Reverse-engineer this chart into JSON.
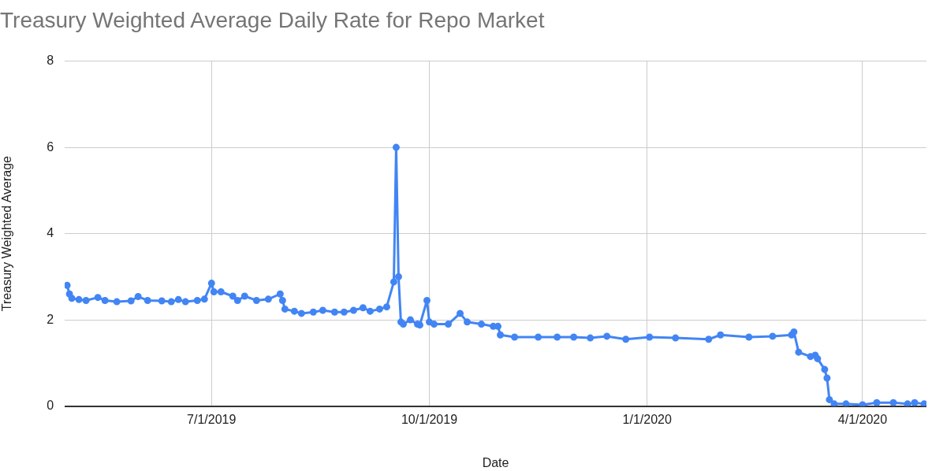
{
  "chart_data": {
    "type": "line",
    "title": "Treasury Weighted Average Daily Rate for Repo Market",
    "xlabel": "Date",
    "ylabel": "Treasury Weighted Average",
    "x": [
      "2019-05-01",
      "2019-05-02",
      "2019-05-03",
      "2019-05-06",
      "2019-05-09",
      "2019-05-14",
      "2019-05-17",
      "2019-05-22",
      "2019-05-28",
      "2019-05-31",
      "2019-06-04",
      "2019-06-10",
      "2019-06-14",
      "2019-06-17",
      "2019-06-20",
      "2019-06-25",
      "2019-06-28",
      "2019-07-01",
      "2019-07-02",
      "2019-07-05",
      "2019-07-10",
      "2019-07-12",
      "2019-07-15",
      "2019-07-20",
      "2019-07-25",
      "2019-07-30",
      "2019-07-31",
      "2019-08-01",
      "2019-08-05",
      "2019-08-08",
      "2019-08-13",
      "2019-08-17",
      "2019-08-22",
      "2019-08-26",
      "2019-08-30",
      "2019-09-03",
      "2019-09-06",
      "2019-09-10",
      "2019-09-13",
      "2019-09-16",
      "2019-09-17",
      "2019-09-18",
      "2019-09-19",
      "2019-09-20",
      "2019-09-23",
      "2019-09-26",
      "2019-09-27",
      "2019-09-30",
      "2019-10-01",
      "2019-10-03",
      "2019-10-09",
      "2019-10-14",
      "2019-10-17",
      "2019-10-23",
      "2019-10-28",
      "2019-10-30",
      "2019-10-31",
      "2019-11-06",
      "2019-11-16",
      "2019-11-24",
      "2019-12-01",
      "2019-12-08",
      "2019-12-15",
      "2019-12-23",
      "2020-01-02",
      "2020-01-13",
      "2020-01-27",
      "2020-02-01",
      "2020-02-13",
      "2020-02-23",
      "2020-03-02",
      "2020-03-03",
      "2020-03-05",
      "2020-03-10",
      "2020-03-12",
      "2020-03-13",
      "2020-03-16",
      "2020-03-17",
      "2020-03-18",
      "2020-03-20",
      "2020-03-25",
      "2020-04-01",
      "2020-04-07",
      "2020-04-14",
      "2020-04-20",
      "2020-04-23",
      "2020-04-27"
    ],
    "series": [
      {
        "color": "#4285f4",
        "values": [
          2.8,
          2.6,
          2.5,
          2.47,
          2.45,
          2.52,
          2.45,
          2.42,
          2.44,
          2.54,
          2.45,
          2.44,
          2.42,
          2.47,
          2.42,
          2.45,
          2.48,
          2.85,
          2.65,
          2.65,
          2.55,
          2.45,
          2.55,
          2.45,
          2.48,
          2.6,
          2.45,
          2.25,
          2.2,
          2.15,
          2.18,
          2.22,
          2.18,
          2.18,
          2.22,
          2.28,
          2.2,
          2.25,
          2.3,
          2.88,
          6.0,
          3.0,
          1.95,
          1.9,
          2.0,
          1.9,
          1.88,
          2.45,
          1.95,
          1.9,
          1.9,
          2.15,
          1.95,
          1.9,
          1.85,
          1.85,
          1.65,
          1.6,
          1.6,
          1.6,
          1.6,
          1.58,
          1.62,
          1.55,
          1.6,
          1.58,
          1.55,
          1.65,
          1.6,
          1.62,
          1.65,
          1.72,
          1.25,
          1.15,
          1.18,
          1.1,
          0.85,
          0.65,
          0.15,
          0.05,
          0.05,
          0.03,
          0.08,
          0.08,
          0.05,
          0.08,
          0.05
        ]
      }
    ],
    "xlim": [
      "2019-04-30",
      "2020-04-28"
    ],
    "xticks": [
      {
        "value": "2019-07-01",
        "label": "7/1/2019"
      },
      {
        "value": "2019-10-01",
        "label": "10/1/2019"
      },
      {
        "value": "2020-01-01",
        "label": "1/1/2020"
      },
      {
        "value": "2020-04-01",
        "label": "4/1/2020"
      }
    ],
    "ylim": [
      0,
      8
    ],
    "yticks": [
      0,
      2,
      4,
      6,
      8
    ],
    "grid": true,
    "legend": false,
    "marker": "circle",
    "line_style": "solid"
  }
}
